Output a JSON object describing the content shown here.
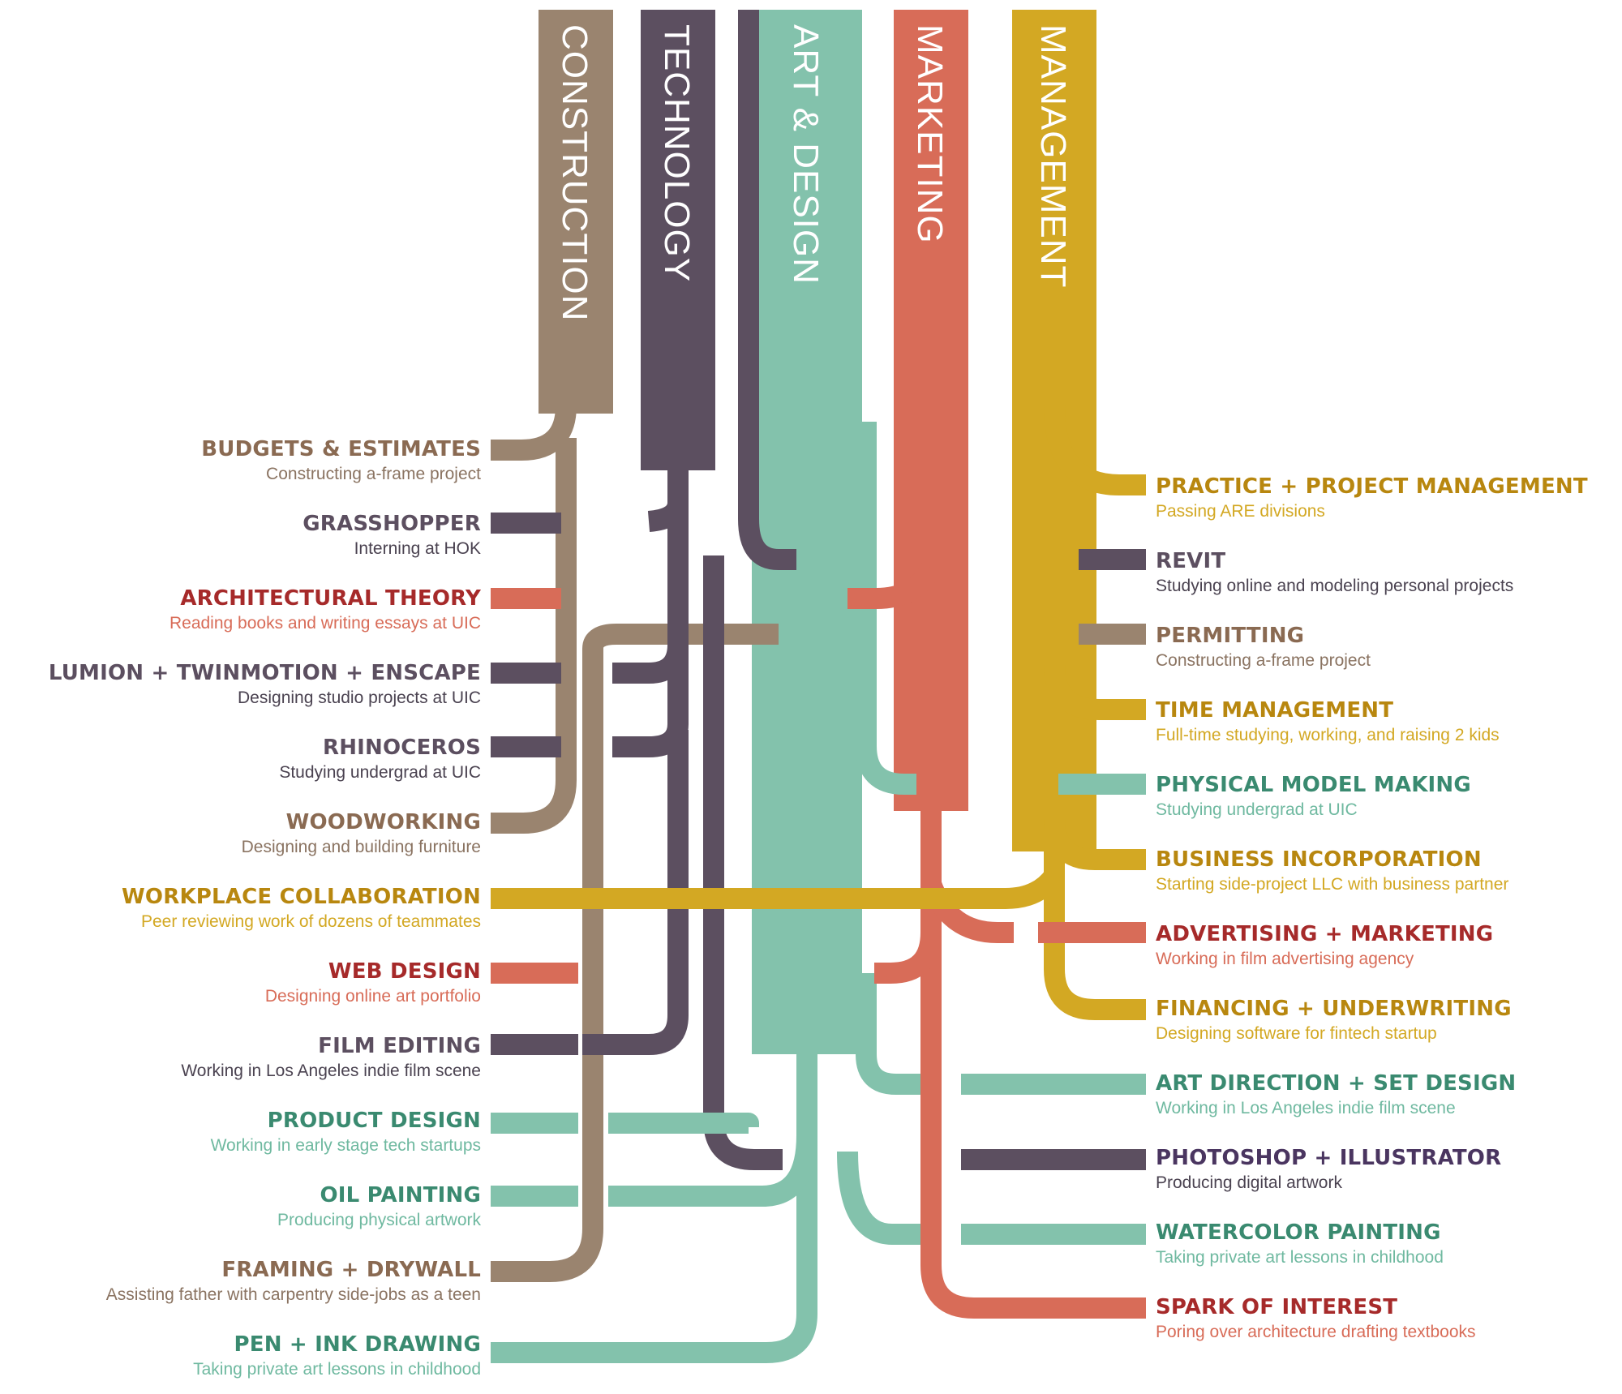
{
  "colors": {
    "construction": "#9a846f",
    "technology": "#5c4f60",
    "art_design": "#83c2ac",
    "marketing": "#d86c58",
    "management": "#d3a823"
  },
  "categories": [
    {
      "key": "construction",
      "label": "CONSTRUCTION"
    },
    {
      "key": "technology",
      "label": "TECHNOLOGY"
    },
    {
      "key": "art_design",
      "label": "ART & DESIGN"
    },
    {
      "key": "marketing",
      "label": "MARKETING"
    },
    {
      "key": "management",
      "label": "MANAGEMENT"
    }
  ],
  "left_items": [
    {
      "title": "BUDGETS & ESTIMATES",
      "subtitle": "Constructing a-frame project",
      "title_color": "#8a6a52",
      "sub_color": "#8a7361"
    },
    {
      "title": "GRASSHOPPER",
      "subtitle": "Interning at HOK",
      "title_color": "#5c4f60",
      "sub_color": "#4a4250"
    },
    {
      "title": "ARCHITECTURAL THEORY",
      "subtitle": "Reading books and writing essays at UIC",
      "title_color": "#a62a2a",
      "sub_color": "#d86c58"
    },
    {
      "title": "LUMION + TWINMOTION + ENSCAPE",
      "subtitle": "Designing studio projects at UIC",
      "title_color": "#5c4f60",
      "sub_color": "#4a4250"
    },
    {
      "title": "RHINOCEROS",
      "subtitle": "Studying undergrad at UIC",
      "title_color": "#5c4f60",
      "sub_color": "#4a4250"
    },
    {
      "title": "WOODWORKING",
      "subtitle": "Designing and building furniture",
      "title_color": "#8a6a52",
      "sub_color": "#8a7361"
    },
    {
      "title": "WORKPLACE COLLABORATION",
      "subtitle": "Peer reviewing work of dozens of teammates",
      "title_color": "#b8870f",
      "sub_color": "#d3a823"
    },
    {
      "title": "WEB DESIGN",
      "subtitle": "Designing online art portfolio",
      "title_color": "#a62a2a",
      "sub_color": "#d86c58"
    },
    {
      "title": "FILM EDITING",
      "subtitle": "Working in Los Angeles indie film scene",
      "title_color": "#5c4f60",
      "sub_color": "#4a4250"
    },
    {
      "title": "PRODUCT DESIGN",
      "subtitle": "Working in early stage tech startups",
      "title_color": "#3a8a70",
      "sub_color": "#6fb9a0"
    },
    {
      "title": "OIL PAINTING",
      "subtitle": "Producing physical artwork",
      "title_color": "#3a8a70",
      "sub_color": "#6fb9a0"
    },
    {
      "title": "FRAMING + DRYWALL",
      "subtitle": "Assisting father with carpentry side-jobs as a teen",
      "title_color": "#8a6a52",
      "sub_color": "#8a7361"
    },
    {
      "title": "PEN + INK DRAWING",
      "subtitle": "Taking private art lessons in childhood",
      "title_color": "#3a8a70",
      "sub_color": "#6fb9a0"
    }
  ],
  "right_items": [
    {
      "title": "PRACTICE + PROJECT MANAGEMENT",
      "subtitle": "Passing ARE divisions",
      "title_color": "#b8870f",
      "sub_color": "#d3a823"
    },
    {
      "title": "REVIT",
      "subtitle": "Studying online and modeling personal projects",
      "title_color": "#5c4f60",
      "sub_color": "#4a4250"
    },
    {
      "title": "PERMITTING",
      "subtitle": "Constructing a-frame project",
      "title_color": "#8a6a52",
      "sub_color": "#8a7361"
    },
    {
      "title": "TIME MANAGEMENT",
      "subtitle": "Full-time studying, working, and raising 2 kids",
      "title_color": "#b8870f",
      "sub_color": "#d3a823"
    },
    {
      "title": "PHYSICAL MODEL MAKING",
      "subtitle": "Studying undergrad at UIC",
      "title_color": "#3a8a70",
      "sub_color": "#6fb9a0"
    },
    {
      "title": "BUSINESS INCORPORATION",
      "subtitle": "Starting side-project LLC with business partner",
      "title_color": "#b8870f",
      "sub_color": "#d3a823"
    },
    {
      "title": "ADVERTISING + MARKETING",
      "subtitle": "Working in film advertising agency",
      "title_color": "#a62a2a",
      "sub_color": "#d86c58"
    },
    {
      "title": "FINANCING + UNDERWRITING",
      "subtitle": "Designing software for fintech startup",
      "title_color": "#b8870f",
      "sub_color": "#d3a823"
    },
    {
      "title": "ART DIRECTION + SET DESIGN",
      "subtitle": "Working in Los Angeles indie film scene",
      "title_color": "#3a8a70",
      "sub_color": "#6fb9a0"
    },
    {
      "title": "PHOTOSHOP + ILLUSTRATOR",
      "subtitle": "Producing digital artwork",
      "title_color": "#4a3560",
      "sub_color": "#4a4250"
    },
    {
      "title": "WATERCOLOR PAINTING",
      "subtitle": "Taking private art lessons in childhood",
      "title_color": "#3a8a70",
      "sub_color": "#6fb9a0"
    },
    {
      "title": "SPARK OF INTEREST",
      "subtitle": "Poring over architecture drafting textbooks",
      "title_color": "#a62a2a",
      "sub_color": "#d86c58"
    }
  ]
}
